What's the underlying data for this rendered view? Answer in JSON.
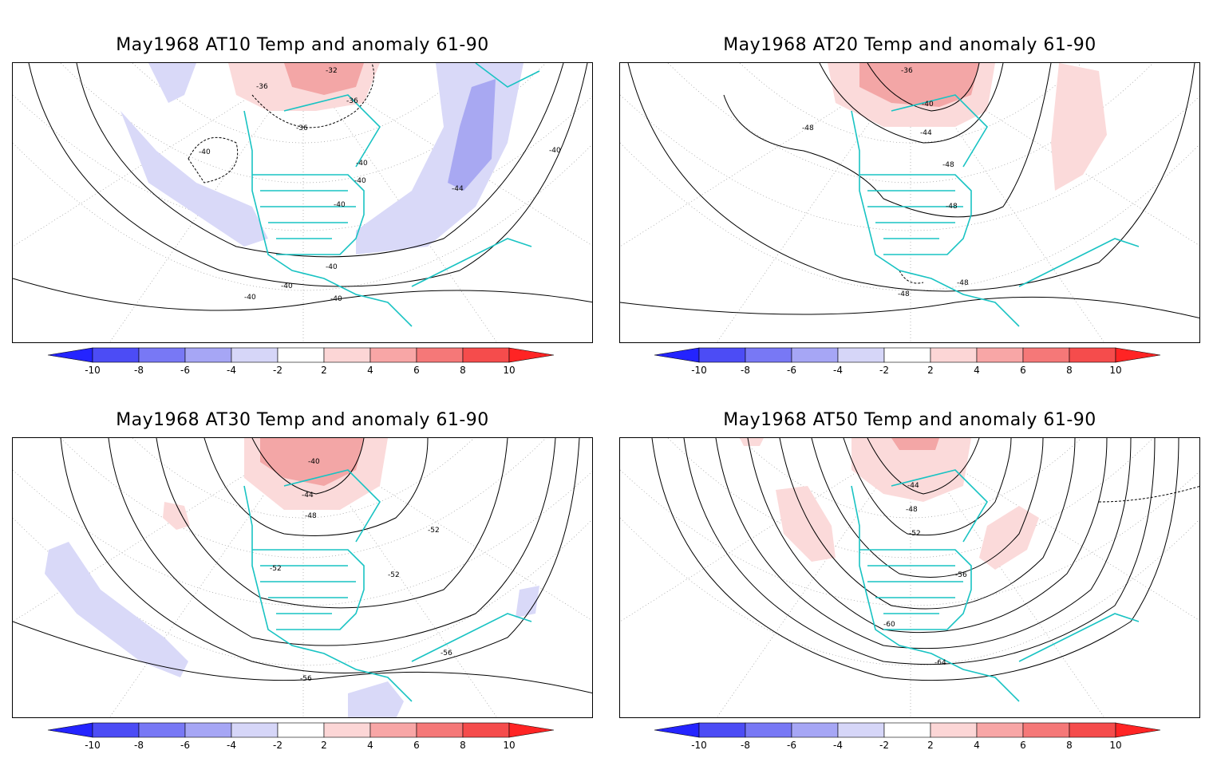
{
  "panels": [
    {
      "title": "May1968 AT10 Temp and anomaly 61-90",
      "contour_labels": [
        "-32",
        "-36",
        "-36",
        "-36",
        "-40",
        "-40",
        "-40",
        "-40",
        "-40",
        "-44",
        "-40",
        "-40",
        "-40",
        "-40"
      ]
    },
    {
      "title": "May1968 AT20 Temp and anomaly 61-90",
      "contour_labels": [
        "-36",
        "-40",
        "-44",
        "-48",
        "-48",
        "-48",
        "-48",
        "-48"
      ]
    },
    {
      "title": "May1968 AT30 Temp and anomaly 61-90",
      "contour_labels": [
        "-40",
        "-44",
        "-48",
        "-52",
        "-52",
        "-52",
        "-56",
        "-56"
      ]
    },
    {
      "title": "May1968 AT50 Temp and anomaly 61-90",
      "contour_labels": [
        "-44",
        "-48",
        "-52",
        "-56",
        "-60",
        "-64"
      ]
    }
  ],
  "colorbar": {
    "labels": [
      "-10",
      "-8",
      "-6",
      "-4",
      "-2",
      "2",
      "4",
      "6",
      "8",
      "10"
    ],
    "colors": [
      "#2424ff",
      "#4c4cf5",
      "#7878f5",
      "#a6a6f5",
      "#d6d6f8",
      "#ffffff",
      "#fcd6d6",
      "#f8a6a6",
      "#f57878",
      "#f54c4c",
      "#ff2424"
    ]
  },
  "colors": {
    "coastline": "#19c3c3",
    "contour": "#000000",
    "anomaly_blue_light": "#d9d9f8",
    "anomaly_blue_mid": "#a8a8f2",
    "anomaly_red_light": "#fbdada",
    "anomaly_red_mid": "#f3a6a6"
  }
}
